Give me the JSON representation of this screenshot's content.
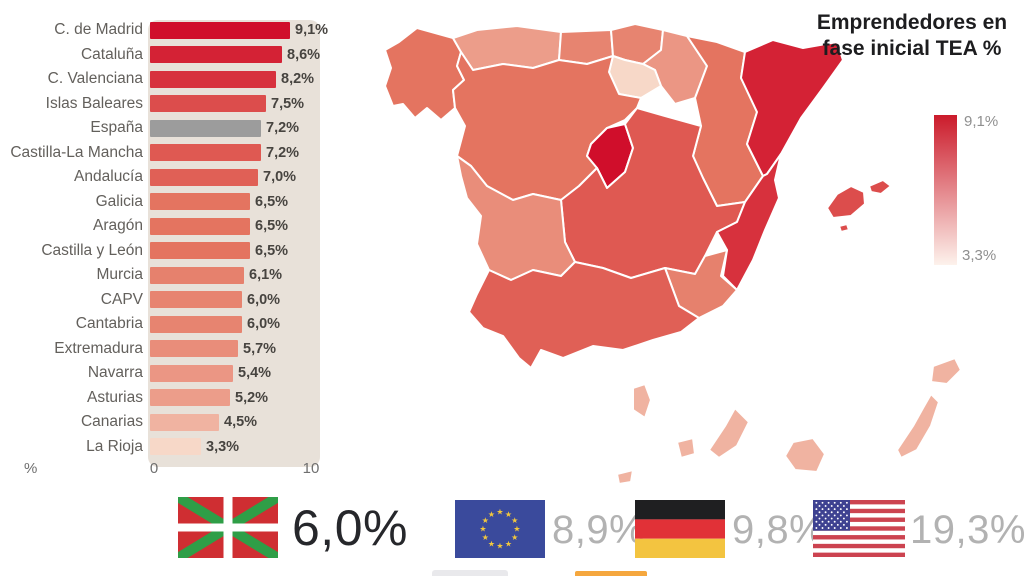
{
  "title": "Emprendedores en fase inicial TEA %",
  "legend": {
    "max_label": "9,1%",
    "min_label": "3,3%",
    "color_high": "#cb1b2b",
    "color_low": "#fdf2ec"
  },
  "axis": {
    "unit": "%",
    "tick_min": "0",
    "tick_max": "10"
  },
  "chart_data": [
    {
      "type": "bar",
      "orientation": "horizontal",
      "xlim": [
        0,
        10
      ],
      "x_unit": "%",
      "espana_color": "#9c9c9c",
      "color_scale": [
        [
          3.3,
          "#f7d8c8"
        ],
        [
          6.5,
          "#e47460"
        ],
        [
          9.1,
          "#d00e2b"
        ]
      ],
      "regions": [
        {
          "id": "madrid",
          "label": "C. de Madrid",
          "value": 9.1,
          "display": "9,1%"
        },
        {
          "id": "cataluna",
          "label": "Cataluña",
          "value": 8.6,
          "display": "8,6%"
        },
        {
          "id": "valencia",
          "label": "C. Valenciana",
          "value": 8.2,
          "display": "8,2%"
        },
        {
          "id": "baleares",
          "label": "Islas Baleares",
          "value": 7.5,
          "display": "7,5%"
        },
        {
          "id": "espana",
          "label": "España",
          "value": 7.2,
          "display": "7,2%"
        },
        {
          "id": "clm",
          "label": "Castilla-La Mancha",
          "value": 7.2,
          "display": "7,2%"
        },
        {
          "id": "andalucia",
          "label": "Andalucía",
          "value": 7.0,
          "display": "7,0%"
        },
        {
          "id": "galicia",
          "label": "Galicia",
          "value": 6.5,
          "display": "6,5%"
        },
        {
          "id": "aragon",
          "label": "Aragón",
          "value": 6.5,
          "display": "6,5%"
        },
        {
          "id": "cyl",
          "label": "Castilla y León",
          "value": 6.5,
          "display": "6,5%"
        },
        {
          "id": "murcia",
          "label": "Murcia",
          "value": 6.1,
          "display": "6,1%"
        },
        {
          "id": "capv",
          "label": "CAPV",
          "value": 6.0,
          "display": "6,0%"
        },
        {
          "id": "cantabria",
          "label": "Cantabria",
          "value": 6.0,
          "display": "6,0%"
        },
        {
          "id": "extremadura",
          "label": "Extremadura",
          "value": 5.7,
          "display": "5,7%"
        },
        {
          "id": "navarra",
          "label": "Navarra",
          "value": 5.4,
          "display": "5,4%"
        },
        {
          "id": "asturias",
          "label": "Asturias",
          "value": 5.2,
          "display": "5,2%"
        },
        {
          "id": "canarias",
          "label": "Canarias",
          "value": 4.5,
          "display": "4,5%"
        },
        {
          "id": "rioja",
          "label": "La Rioja",
          "value": 3.3,
          "display": "3,3%"
        }
      ]
    },
    {
      "type": "choropleth",
      "legend": {
        "max": 9.1,
        "min": 3.3
      },
      "regions": {
        "madrid": 9.1,
        "cataluna": 8.6,
        "valencia": 8.2,
        "baleares": 7.5,
        "clm": 7.2,
        "andalucia": 7.0,
        "galicia": 6.5,
        "aragon": 6.5,
        "cyl": 6.5,
        "murcia": 6.1,
        "capv": 6.0,
        "cantabria": 6.0,
        "extremadura": 5.7,
        "navarra": 5.4,
        "asturias": 5.2,
        "canarias": 4.5,
        "rioja": 3.3
      }
    }
  ],
  "comparison": {
    "items": [
      {
        "id": "basque-country",
        "flag": "ikurrina",
        "value": "6,0%",
        "emphasis": true
      },
      {
        "id": "european-union",
        "flag": "eu",
        "value": "8,9%",
        "emphasis": false
      },
      {
        "id": "germany",
        "flag": "germany",
        "value": "9,8%",
        "emphasis": false
      },
      {
        "id": "usa",
        "flag": "usa",
        "value": "19,3%",
        "emphasis": false
      }
    ]
  },
  "flags": {
    "basque": {
      "field": "#cf2e32",
      "saltire": "#2f9e47",
      "cross": "#ffffff"
    },
    "eu": {
      "field": "#3a4a9c",
      "stars": "#f2c83d"
    },
    "germany": {
      "black": "#1f1f21",
      "red": "#e13137",
      "gold": "#f3c440"
    },
    "usa": {
      "stripe": "#cc4350",
      "canton": "#3e4291",
      "stars": "#ffffff"
    }
  }
}
